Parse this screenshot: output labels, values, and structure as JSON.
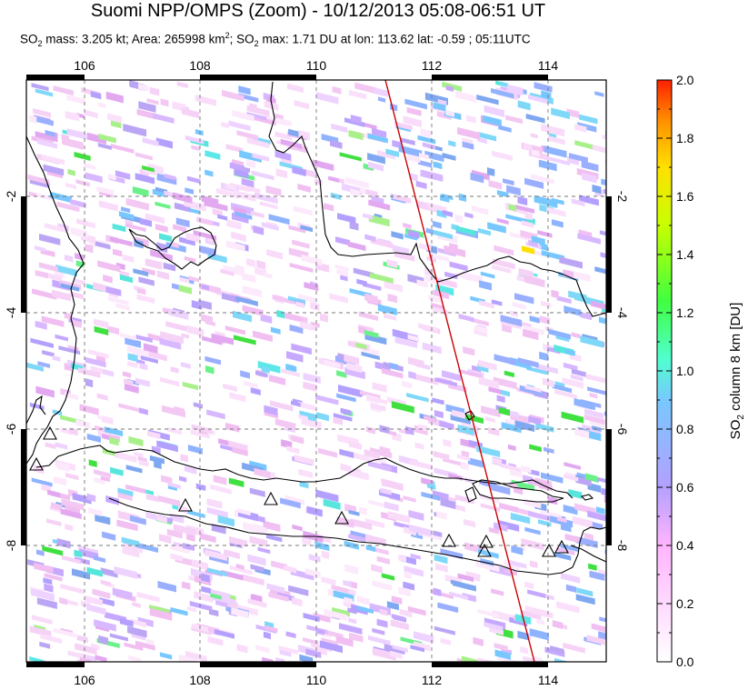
{
  "header": {
    "title": "Suomi NPP/OMPS (Zoom) - 10/12/2013 05:08-06:51 UT",
    "subtitle": {
      "p1": "SO",
      "p1sub": "2",
      "p2": " mass: 3.205 kt; Area: 265998 km",
      "p2sup": "2",
      "p3": "; SO",
      "p3sub": "2",
      "p4": " max: 1.71 DU at lon: 113.62 lat: -0.59 ; 05:11UTC"
    }
  },
  "map": {
    "lon_ticks": [
      "106",
      "108",
      "110",
      "112",
      "114"
    ],
    "lat_ticks": [
      "-2",
      "-4",
      "-6",
      "-8"
    ],
    "lon_range": [
      105.0,
      115.0
    ],
    "lat_range": [
      -10.0,
      0.0
    ],
    "gridlines": true,
    "swath_edge_color": "#cc0000",
    "volcano_marker": "triangle-icon",
    "volcano_count": 10
  },
  "colorbar": {
    "label_main": "SO",
    "label_sub": "2",
    "label_rest": " column 8 km [DU]",
    "ticks": [
      "0.0",
      "0.2",
      "0.4",
      "0.6",
      "0.8",
      "1.0",
      "1.2",
      "1.4",
      "1.6",
      "1.8",
      "2.0"
    ],
    "range": [
      0.0,
      2.0
    ],
    "colors": [
      "#ffffff",
      "#ffb4ff",
      "#b4a0ff",
      "#78c8ff",
      "#50ffd0",
      "#40ff40",
      "#c8ff00",
      "#ffe000",
      "#ff9000",
      "#ff3000"
    ]
  }
}
